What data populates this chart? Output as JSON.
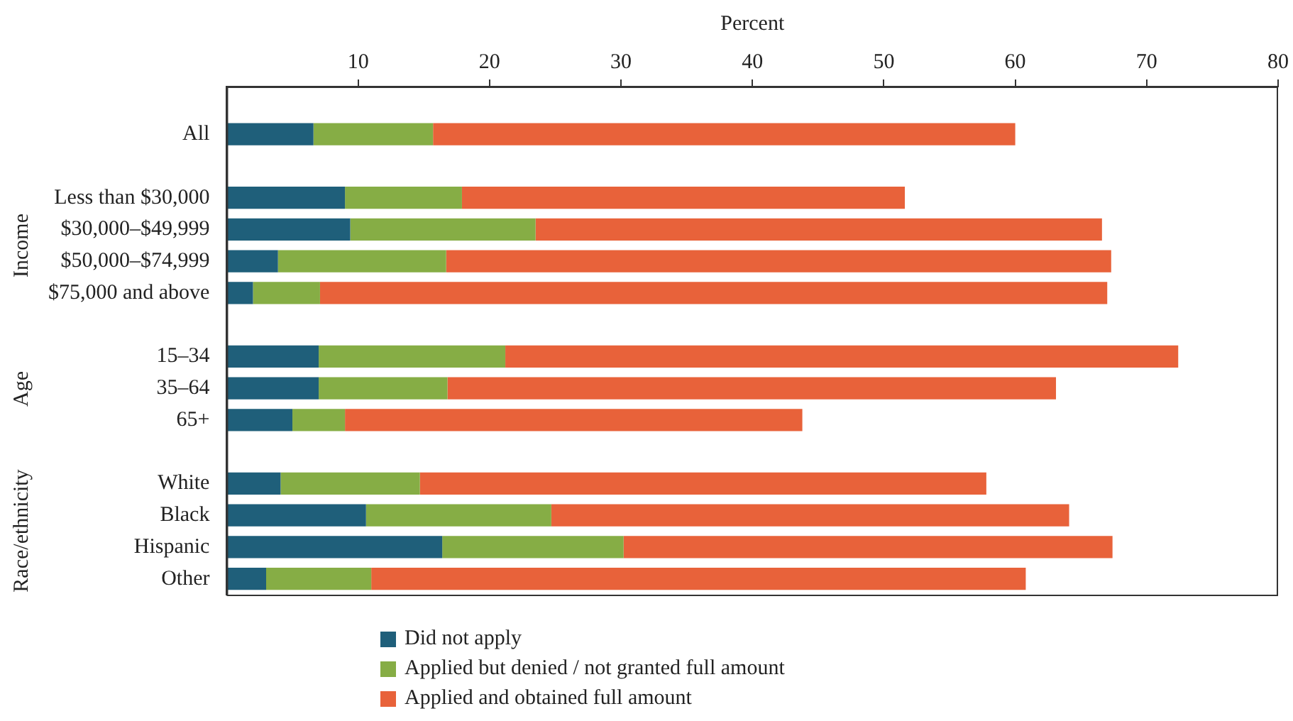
{
  "chart_data": {
    "type": "bar",
    "orientation": "horizontal",
    "stacked": true,
    "xlabel": "Percent",
    "categories": [
      null,
      "All",
      null,
      "Less than $30,000",
      "$30,000–$49,999",
      "$50,000–$74,999",
      "$75,000 and above",
      null,
      "15–34",
      "35–64",
      "65+",
      null,
      "White",
      "Black",
      "Hispanic",
      "Other"
    ],
    "series": [
      {
        "name": "Did not apply",
        "color": "#1f5f7a",
        "values": [
          null,
          6.6,
          null,
          9.0,
          9.4,
          3.9,
          2.0,
          null,
          7.0,
          7.0,
          5.0,
          null,
          4.1,
          10.6,
          16.4,
          3.0
        ]
      },
      {
        "name": "Applied but denied / not granted full amount",
        "color": "#86ad45",
        "values": [
          null,
          9.1,
          null,
          8.9,
          14.1,
          12.8,
          5.1,
          null,
          14.2,
          9.8,
          4.0,
          null,
          10.6,
          14.1,
          13.8,
          8.0
        ]
      },
      {
        "name": "Applied and obtained full amount",
        "color": "#e8623a",
        "values": [
          null,
          44.3,
          null,
          33.7,
          43.1,
          50.6,
          59.9,
          null,
          51.2,
          46.3,
          34.8,
          null,
          43.1,
          39.4,
          37.2,
          49.8
        ]
      }
    ],
    "xlim": [
      0,
      80
    ],
    "xticks": [
      10,
      20,
      30,
      40,
      50,
      60,
      70,
      80
    ],
    "annotations": [
      "Income",
      "Age",
      "Race/ethnicity"
    ],
    "legend": "bottom",
    "grid": false
  }
}
